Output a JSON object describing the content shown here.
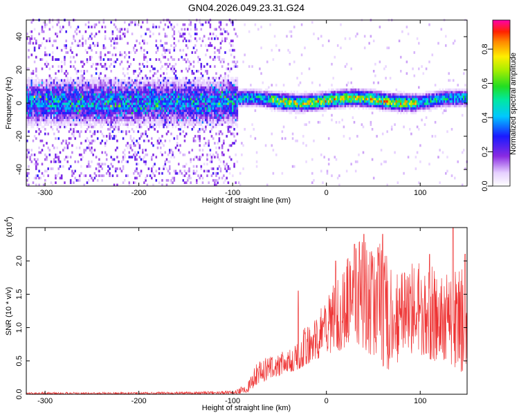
{
  "chart_data": [
    {
      "type": "heatmap",
      "title": "GN04.2026.049.23.31.G24",
      "xlabel": "Height of straight line (km)",
      "ylabel": "Frequency (Hz)",
      "xlim": [
        -320,
        150
      ],
      "ylim": [
        -50,
        50
      ],
      "xticks": [
        -300,
        -200,
        -100,
        0,
        100
      ],
      "yticks": [
        -40,
        -20,
        0,
        20,
        40
      ],
      "grid": false,
      "colorbar": {
        "label": "Normalized spectral amplitude",
        "range": [
          0,
          0.97
        ],
        "ticks": [
          "0.0",
          "0.2",
          "0.4",
          "0.6",
          "0.8"
        ],
        "colormap": "rainbow (white-purple-blue-cyan-green-yellow-red-magenta)"
      },
      "description_regions": [
        {
          "x_range": [
            -320,
            -95
          ],
          "pattern": "broad diffuse scatter across full frequency range; dense band around 0 Hz spanning about -15 to 15 Hz"
        },
        {
          "x_range": [
            -95,
            150
          ],
          "pattern": "narrow band centered near 1 Hz, width about ±6 Hz, peak amplitude highest between -50 and 90 km"
        }
      ]
    },
    {
      "type": "line",
      "xlabel": "Height of straight line (km)",
      "ylabel": "SNR (10 * v/v)",
      "yscale_label": "(x10",
      "yscale_exp": "4",
      "xlim": [
        -320,
        150
      ],
      "ylim": [
        0,
        2.5
      ],
      "xticks": [
        -300,
        -200,
        -100,
        0,
        100
      ],
      "yticks": [
        "0.0",
        "0.5",
        "1.0",
        "1.5",
        "2.0"
      ],
      "grid": false,
      "color": "#ee3333",
      "series": [
        {
          "envelope_x": [
            -320,
            -200,
            -100,
            -85,
            -75,
            -65,
            -55,
            -45,
            -35,
            -25,
            -15,
            -5,
            5,
            15,
            25,
            35,
            45,
            55,
            65,
            75,
            85,
            95,
            105,
            115,
            125,
            135,
            145,
            150
          ],
          "envelope_low": [
            0.0,
            0.0,
            0.0,
            0.02,
            0.1,
            0.2,
            0.25,
            0.3,
            0.35,
            0.4,
            0.5,
            0.55,
            0.6,
            0.65,
            0.75,
            0.7,
            0.6,
            0.5,
            0.35,
            0.45,
            0.55,
            0.6,
            0.55,
            0.5,
            0.45,
            0.4,
            0.3,
            0.25
          ],
          "envelope_high": [
            0.03,
            0.03,
            0.05,
            0.15,
            0.45,
            0.55,
            0.6,
            0.65,
            0.75,
            1.0,
            1.2,
            1.3,
            1.6,
            2.0,
            2.1,
            2.3,
            2.3,
            2.3,
            2.1,
            1.8,
            1.9,
            2.0,
            2.0,
            1.9,
            1.8,
            1.9,
            2.0,
            1.9
          ],
          "spikes": [
            [
              -30,
              1.55
            ],
            [
              10,
              2.0
            ],
            [
              30,
              2.25
            ],
            [
              40,
              2.4
            ],
            [
              55,
              2.2
            ],
            [
              60,
              2.4
            ],
            [
              110,
              2.1
            ],
            [
              135,
              2.5
            ],
            [
              148,
              2.1
            ]
          ]
        }
      ]
    }
  ],
  "colors": {
    "line": "#ee3333",
    "axis": "#000000"
  }
}
